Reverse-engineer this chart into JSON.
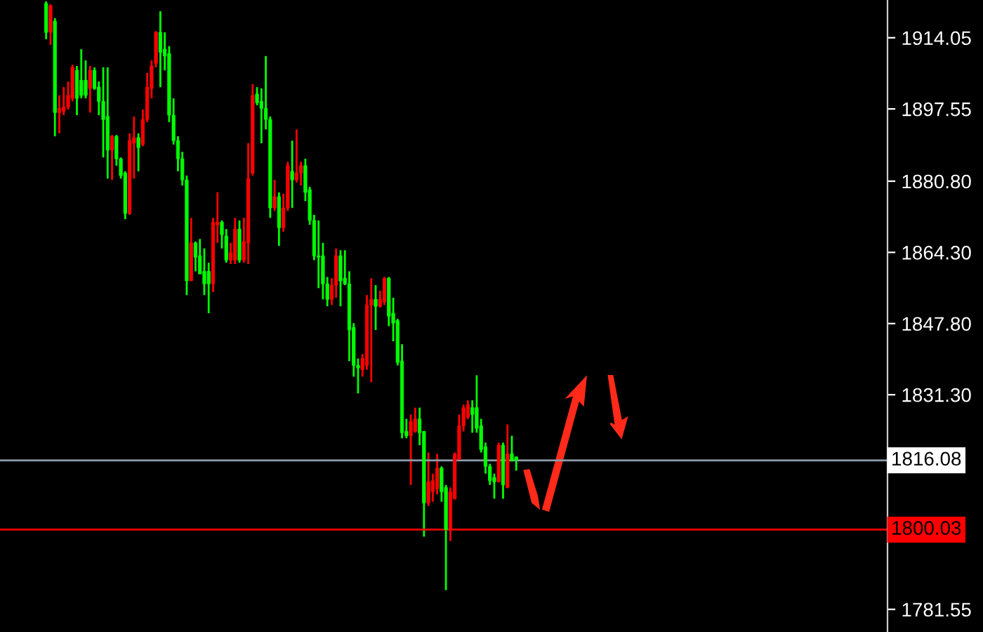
{
  "chart_data": {
    "type": "candlestick",
    "categories": [
      null,
      null,
      null,
      null,
      null,
      null,
      null,
      null,
      null,
      null,
      null,
      null,
      null,
      null,
      null,
      null,
      null,
      null,
      null,
      null,
      null,
      null,
      null,
      null,
      null,
      null,
      null,
      null,
      null,
      null,
      null,
      null,
      null,
      null,
      null,
      null,
      null,
      null,
      null,
      null,
      null,
      null,
      null,
      null,
      null,
      null,
      null,
      null,
      null,
      null,
      null,
      null,
      null,
      null,
      null,
      null,
      null,
      null,
      null,
      null,
      null,
      null,
      null,
      null,
      null,
      null,
      null,
      null,
      null,
      null,
      null,
      null,
      null,
      null,
      null,
      null,
      null,
      null,
      null,
      null,
      null,
      null,
      null,
      null,
      null,
      null,
      null,
      null,
      null,
      null,
      null,
      null,
      null,
      null,
      null,
      null,
      null,
      null,
      null,
      null,
      null,
      null,
      null,
      null,
      null,
      null,
      null,
      null,
      null,
      null,
      null,
      null,
      null,
      null,
      null,
      null,
      null,
      null,
      null,
      null,
      null,
      null,
      null,
      null,
      null,
      null,
      null,
      null,
      null,
      null,
      null,
      null,
      null,
      null,
      null,
      null,
      null,
      null,
      null,
      null,
      null,
      null,
      null,
      null,
      null,
      null,
      null,
      null,
      null,
      null,
      null,
      null,
      null,
      null,
      null,
      null,
      null,
      null,
      null,
      null,
      null,
      null,
      null,
      null,
      null,
      null,
      null,
      null,
      null,
      null,
      null,
      null,
      null,
      null,
      null,
      null,
      null,
      null,
      null,
      null,
      null,
      null,
      null,
      null,
      null,
      null,
      null,
      null,
      null,
      null,
      null,
      null,
      null,
      null,
      null,
      null,
      null,
      null,
      null,
      null,
      null,
      null
    ],
    "ohlc": [
      null,
      null,
      null,
      null,
      null,
      null,
      null,
      null,
      null,
      null,
      [
        1922.0,
        1922.5,
        1913.7,
        1915.3
      ],
      [
        1915.3,
        1921.8,
        1912.4,
        1921.5
      ],
      [
        1917.9,
        1918.6,
        1891.2,
        1896.7
      ],
      [
        1896.7,
        1900.7,
        1891.9,
        1897.7
      ],
      [
        1897.0,
        1902.6,
        1896.1,
        1898.0
      ],
      [
        1898.0,
        1903.9,
        1897.4,
        1900.7
      ],
      [
        1900.0,
        1907.8,
        1899.3,
        1907.2
      ],
      [
        1906.5,
        1907.5,
        1896.1,
        1900.0
      ],
      [
        1904.2,
        1911.4,
        1900.0,
        1900.7
      ],
      [
        1904.2,
        1908.8,
        1900.0,
        1900.7
      ],
      [
        1902.3,
        1907.5,
        1896.7,
        1906.5
      ],
      [
        1906.5,
        1907.2,
        1902.0,
        1902.3
      ],
      [
        1902.6,
        1903.9,
        1896.1,
        1899.3
      ],
      [
        1899.3,
        1907.2,
        1886.3,
        1895.1
      ],
      [
        1895.8,
        1907.2,
        1881.4,
        1888.0
      ],
      [
        1888.0,
        1891.5,
        1881.1,
        1891.2
      ],
      [
        1891.2,
        1891.5,
        1884.4,
        1886.0
      ],
      [
        1886.0,
        1886.3,
        1881.4,
        1882.1
      ],
      [
        1882.7,
        1883.1,
        1872.0,
        1873.3
      ],
      [
        1873.3,
        1891.9,
        1873.0,
        1890.2
      ],
      [
        1889.6,
        1895.8,
        1881.4,
        1890.9
      ],
      [
        1890.9,
        1891.9,
        1883.1,
        1888.6
      ],
      [
        1889.3,
        1897.4,
        1888.9,
        1895.1
      ],
      [
        1895.1,
        1905.9,
        1894.5,
        1902.6
      ],
      [
        1902.3,
        1908.8,
        1900.0,
        1907.5
      ],
      [
        1908.1,
        1915.6,
        1907.2,
        1915.3
      ],
      [
        1915.3,
        1920.2,
        1902.6,
        1910.7
      ],
      [
        1911.4,
        1915.3,
        1906.5,
        1909.8
      ],
      [
        1910.4,
        1912.1,
        1894.5,
        1896.1
      ],
      [
        1896.1,
        1900.0,
        1889.3,
        1890.2
      ],
      [
        1890.2,
        1891.2,
        1883.1,
        1886.0
      ],
      [
        1886.0,
        1887.6,
        1879.8,
        1881.1
      ],
      [
        1881.1,
        1882.1,
        1854.4,
        1857.7
      ],
      [
        1857.7,
        1872.3,
        1857.7,
        1866.5
      ],
      [
        1866.5,
        1866.8,
        1859.9,
        1863.2
      ],
      [
        1863.5,
        1867.4,
        1859.3,
        1859.3
      ],
      [
        1859.9,
        1865.2,
        1854.4,
        1857.0
      ],
      [
        1859.9,
        1861.9,
        1850.2,
        1857.0
      ],
      [
        1857.0,
        1872.3,
        1855.1,
        1871.3
      ],
      [
        1870.7,
        1878.2,
        1866.5,
        1871.3
      ],
      [
        1871.3,
        1871.7,
        1865.2,
        1868.4
      ],
      [
        1868.1,
        1869.7,
        1861.9,
        1862.5
      ],
      [
        1862.5,
        1866.5,
        1861.6,
        1864.2
      ],
      [
        1862.5,
        1872.3,
        1861.6,
        1869.7
      ],
      [
        1869.7,
        1871.7,
        1861.9,
        1862.5
      ],
      [
        1862.5,
        1872.3,
        1861.9,
        1866.8
      ],
      [
        1866.5,
        1889.6,
        1861.6,
        1881.4
      ],
      [
        1882.7,
        1903.3,
        1882.1,
        1900.7
      ],
      [
        1901.0,
        1902.6,
        1898.4,
        1899.0
      ],
      [
        1899.3,
        1902.3,
        1889.6,
        1897.7
      ],
      [
        1897.7,
        1909.8,
        1892.8,
        1895.1
      ],
      [
        1895.1,
        1895.8,
        1872.3,
        1874.6
      ],
      [
        1874.6,
        1881.1,
        1873.9,
        1877.2
      ],
      [
        1877.2,
        1878.2,
        1865.8,
        1870.0
      ],
      [
        1870.0,
        1877.9,
        1869.1,
        1874.6
      ],
      [
        1874.6,
        1885.3,
        1873.9,
        1884.4
      ],
      [
        1883.1,
        1890.2,
        1874.6,
        1881.1
      ],
      [
        1881.1,
        1892.8,
        1880.5,
        1882.7
      ],
      [
        1882.7,
        1885.3,
        1879.8,
        1884.4
      ],
      [
        1884.4,
        1886.0,
        1876.2,
        1878.2
      ],
      [
        1878.8,
        1879.5,
        1870.7,
        1871.7
      ],
      [
        1871.7,
        1873.0,
        1862.5,
        1863.5
      ],
      [
        1863.5,
        1871.7,
        1856.0,
        1863.2
      ],
      [
        1863.5,
        1866.5,
        1853.4,
        1857.0
      ],
      [
        1857.0,
        1858.6,
        1851.8,
        1853.4
      ],
      [
        1853.4,
        1858.3,
        1852.1,
        1856.7
      ],
      [
        1856.7,
        1865.2,
        1853.8,
        1863.5
      ],
      [
        1863.5,
        1864.8,
        1851.8,
        1857.7
      ],
      [
        1858.3,
        1864.8,
        1856.7,
        1857.0
      ],
      [
        1857.0,
        1859.9,
        1839.1,
        1846.3
      ],
      [
        1846.9,
        1847.9,
        1835.5,
        1838.1
      ],
      [
        1838.1,
        1839.7,
        1831.6,
        1837.5
      ],
      [
        1837.1,
        1840.7,
        1835.5,
        1839.7
      ],
      [
        1838.1,
        1854.4,
        1837.1,
        1852.1
      ],
      [
        1852.1,
        1858.3,
        1834.2,
        1853.4
      ],
      [
        1853.4,
        1856.7,
        1846.3,
        1851.8
      ],
      [
        1851.8,
        1855.4,
        1851.5,
        1853.4
      ],
      [
        1852.8,
        1858.6,
        1852.1,
        1858.3
      ],
      [
        1858.3,
        1858.6,
        1847.2,
        1849.5
      ],
      [
        1850.2,
        1853.8,
        1843.7,
        1847.9
      ],
      [
        1848.5,
        1848.9,
        1838.1,
        1838.8
      ],
      [
        1839.1,
        1843.0,
        1821.2,
        1822.5
      ],
      [
        1822.8,
        1825.7,
        1821.2,
        1821.8
      ],
      [
        1821.8,
        1826.7,
        1810.4,
        1825.1
      ],
      [
        1822.8,
        1828.3,
        1822.5,
        1825.7
      ],
      [
        1825.7,
        1828.3,
        1819.6,
        1822.5
      ],
      [
        1822.8,
        1822.9,
        1798.4,
        1806.2
      ],
      [
        1806.2,
        1817.9,
        1805.5,
        1811.1
      ],
      [
        1808.8,
        1813.0,
        1806.5,
        1811.4
      ],
      [
        1809.5,
        1817.6,
        1808.2,
        1814.3
      ],
      [
        1814.3,
        1814.7,
        1806.5,
        1808.8
      ],
      [
        1809.8,
        1810.4,
        1786.0,
        1800.0
      ],
      [
        1800.0,
        1809.8,
        1797.4,
        1808.8
      ],
      [
        1807.2,
        1817.9,
        1807.0,
        1817.6
      ],
      [
        1816.3,
        1826.7,
        1816.0,
        1824.1
      ],
      [
        1824.1,
        1829.0,
        1822.8,
        1828.3
      ],
      [
        1826.1,
        1830.0,
        1825.7,
        1829.0
      ],
      [
        1828.3,
        1830.0,
        1822.5,
        1826.7
      ],
      [
        1828.3,
        1835.8,
        1822.5,
        1823.5
      ],
      [
        1824.1,
        1825.7,
        1817.9,
        1818.6
      ],
      [
        1819.2,
        1820.2,
        1813.0,
        1814.7
      ],
      [
        1814.7,
        1815.3,
        1810.4,
        1811.4
      ],
      [
        1812.1,
        1813.0,
        1807.2,
        1811.1
      ],
      [
        1811.1,
        1820.2,
        1811.0,
        1819.6
      ],
      [
        1819.6,
        1820.2,
        1807.2,
        1810.4
      ],
      [
        1809.8,
        1824.4,
        1809.6,
        1817.6
      ],
      [
        1817.6,
        1821.8,
        1815.8,
        1816.0
      ],
      [
        1816.9,
        1817.0,
        1813.7,
        1816.1
      ],
      null,
      null,
      null,
      null,
      null,
      null,
      null,
      null,
      null,
      null,
      null,
      null,
      null,
      null,
      null,
      null,
      null,
      null,
      null,
      null,
      null,
      null,
      null,
      null,
      null,
      null,
      null,
      null,
      null,
      null,
      null,
      null,
      null,
      null,
      null,
      null,
      null,
      null,
      null,
      null,
      null,
      null,
      null,
      null,
      null,
      null,
      null,
      null,
      null,
      null,
      null,
      null,
      null,
      null,
      null,
      null,
      null,
      null,
      null,
      null,
      null,
      null,
      null,
      null,
      null,
      null,
      null,
      null,
      null,
      null,
      null,
      null,
      null,
      null,
      null,
      null,
      null,
      null,
      null,
      null,
      null,
      null,
      null,
      null
    ],
    "colors": [
      null,
      null,
      null,
      null,
      null,
      null,
      null,
      null,
      null,
      null,
      "#00ff00",
      "#ff0000",
      "#00ff00",
      "#ff0000",
      "#ff0000",
      "#ff0000",
      "#ff0000",
      "#00ff00",
      "#00ff00",
      "#00ff00",
      "#ff0000",
      "#00ff00",
      "#00ff00",
      "#00ff00",
      "#00ff00",
      "#ff0000",
      "#00ff00",
      "#00ff00",
      "#00ff00",
      "#ff0000",
      "#ff0000",
      "#00ff00",
      "#ff0000",
      "#ff0000",
      "#ff0000",
      "#ff0000",
      "#00ff00",
      "#00ff00",
      "#00ff00",
      "#00ff00",
      "#00ff00",
      "#00ff00",
      "#00ff00",
      "#ff0000",
      "#00ff00",
      "#00ff00",
      "#00ff00",
      "#00ff00",
      "#ff0000",
      "#ff0000",
      "#00ff00",
      "#00ff00",
      "#ff0000",
      "#ff0000",
      "#00ff00",
      "#ff0000",
      "#ff0000",
      "#ff0000",
      "#00ff00",
      "#00ff00",
      "#00ff00",
      "#00ff00",
      "#ff0000",
      "#00ff00",
      "#ff0000",
      "#ff0000",
      "#00ff00",
      "#ff0000",
      "#ff0000",
      "#00ff00",
      "#00ff00",
      "#00ff00",
      "#00ff00",
      "#00ff00",
      "#00ff00",
      "#ff0000",
      "#ff0000",
      "#00ff00",
      "#00ff00",
      "#00ff00",
      "#00ff00",
      "#00ff00",
      "#ff0000",
      "#ff0000",
      "#ff0000",
      "#00ff00",
      "#ff0000",
      "#ff0000",
      "#00ff00",
      "#00ff00",
      "#00ff00",
      "#00ff00",
      "#00ff00",
      "#ff0000",
      "#ff0000",
      "#00ff00",
      "#00ff00",
      "#ff0000",
      "#ff0000",
      "#ff0000",
      "#00ff00",
      "#00ff00",
      "#ff0000",
      "#ff0000",
      "#ff0000",
      "#ff0000",
      "#ff0000",
      "#00ff00",
      "#00ff00",
      "#00ff00",
      "#00ff00",
      "#00ff00",
      "#00ff00",
      "#ff0000",
      "#00ff00",
      "#ff0000",
      "#00ff00",
      "#00ff00",
      null,
      null,
      null,
      null,
      null,
      null,
      null,
      null,
      null,
      null,
      null,
      null,
      null,
      null,
      null,
      null,
      null,
      null,
      null,
      null,
      null,
      null,
      null,
      null,
      null,
      null,
      null,
      null,
      null,
      null,
      null,
      null,
      null,
      null,
      null,
      null,
      null,
      null,
      null,
      null,
      null,
      null,
      null,
      null,
      null,
      null,
      null,
      null,
      null,
      null,
      null,
      null,
      null,
      null,
      null,
      null,
      null,
      null,
      null,
      null,
      null,
      null,
      null,
      null,
      null,
      null,
      null,
      null,
      null,
      null,
      null,
      null,
      null,
      null,
      null,
      null,
      null,
      null,
      null,
      null,
      null,
      null,
      null,
      null
    ],
    "ylim": [
      1776.3,
      1922.8
    ],
    "yticks": [
      1914.05,
      1897.55,
      {
        "value": 1880.8,
        "label": "1880.80"
      },
      {
        "value": 1864.3,
        "label": "1864.30"
      },
      {
        "value": 1847.8,
        "label": "1847.80"
      },
      {
        "value": 1831.3,
        "label": "1831.30"
      },
      1781.55
    ],
    "ref_lines": [
      {
        "axis": "y",
        "value": 1816.08,
        "label": "1816.08",
        "color": "#8c9bab"
      },
      {
        "axis": "y",
        "value": 1800.03,
        "label": "1800.03",
        "color": "#ff0000"
      }
    ],
    "tick_labels": "y",
    "grid": false
  }
}
